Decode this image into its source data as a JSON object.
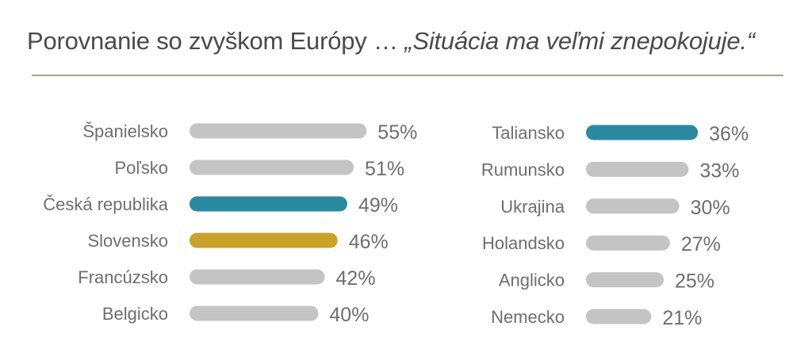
{
  "header": {
    "title_prefix": "Porovnanie so zvyškom Európy … ",
    "title_quote": "„Situácia ma veľmi znepokojuje.“"
  },
  "colors": {
    "default_bar": "#c4c4c4",
    "highlight_teal": "#2a8a9f",
    "highlight_gold": "#c9a227",
    "text": "#6e6e6e",
    "rule": "#a4a48a"
  },
  "chart_data": [
    {
      "type": "bar",
      "orientation": "horizontal",
      "categories": [
        "Španielsko",
        "Poľsko",
        "Česká republika",
        "Slovensko",
        "Francúzsko",
        "Belgicko"
      ],
      "values": [
        55,
        51,
        49,
        46,
        42,
        40
      ],
      "value_labels": [
        "55%",
        "51%",
        "49%",
        "46%",
        "42%",
        "40%"
      ],
      "bar_colors": [
        "default",
        "default",
        "teal",
        "gold",
        "default",
        "default"
      ],
      "unit": "%"
    },
    {
      "type": "bar",
      "orientation": "horizontal",
      "categories": [
        "Taliansko",
        "Rumunsko",
        "Ukrajina",
        "Holandsko",
        "Anglicko",
        "Nemecko"
      ],
      "values": [
        36,
        33,
        30,
        27,
        25,
        21
      ],
      "value_labels": [
        "36%",
        "33%",
        "30%",
        "27%",
        "25%",
        "21%"
      ],
      "bar_colors": [
        "teal",
        "default",
        "default",
        "default",
        "default",
        "default"
      ],
      "unit": "%"
    }
  ]
}
